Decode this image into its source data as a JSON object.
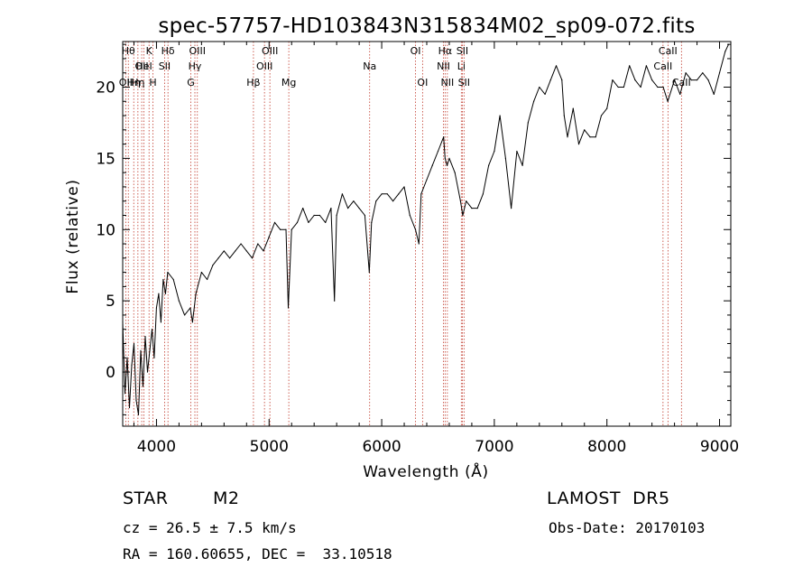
{
  "chart_data": {
    "type": "line",
    "title": "spec-57757-HD103843N315834M02_sp09-072.fits",
    "xlabel": "Wavelength (Å)",
    "ylabel": "Flux (relative)",
    "xlim": [
      3700,
      9100
    ],
    "ylim": [
      -3.8,
      23.2
    ],
    "x_ticks": [
      4000,
      5000,
      6000,
      7000,
      8000,
      9000
    ],
    "x_tick_labels": [
      "4000",
      "5000",
      "6000",
      "7000",
      "8000",
      "9000"
    ],
    "y_ticks": [
      0,
      5,
      10,
      15,
      20
    ],
    "y_tick_labels": [
      "0",
      "5",
      "10",
      "15",
      "20"
    ],
    "grid": false,
    "legend": "none",
    "line_color": "#000000",
    "marker_line_color": "#c0392b",
    "series": [
      {
        "x": [
          3700,
          3720,
          3740,
          3760,
          3780,
          3800,
          3820,
          3840,
          3860,
          3880,
          3900,
          3920,
          3940,
          3960,
          3980,
          4000,
          4020,
          4040,
          4060,
          4080,
          4100,
          4150,
          4200,
          4250,
          4300,
          4320,
          4350,
          4400,
          4450,
          4500,
          4550,
          4600,
          4650,
          4700,
          4750,
          4800,
          4850,
          4900,
          4950,
          5000,
          5050,
          5100,
          5150,
          5170,
          5200,
          5250,
          5300,
          5350,
          5400,
          5450,
          5500,
          5550,
          5580,
          5600,
          5650,
          5700,
          5750,
          5800,
          5850,
          5890,
          5910,
          5950,
          6000,
          6050,
          6100,
          6150,
          6200,
          6250,
          6300,
          6330,
          6350,
          6400,
          6450,
          6500,
          6550,
          6563,
          6580,
          6600,
          6650,
          6700,
          6720,
          6750,
          6800,
          6850,
          6900,
          6950,
          7000,
          7050,
          7100,
          7150,
          7200,
          7250,
          7300,
          7350,
          7400,
          7450,
          7500,
          7550,
          7600,
          7620,
          7650,
          7700,
          7750,
          7800,
          7850,
          7900,
          7950,
          8000,
          8050,
          8100,
          8150,
          8200,
          8250,
          8300,
          8350,
          8400,
          8450,
          8500,
          8540,
          8600,
          8650,
          8700,
          8750,
          8800,
          8850,
          8900,
          8950,
          9000,
          9050,
          9080
        ],
        "y": [
          3.5,
          -1.5,
          1.0,
          -2.5,
          0.5,
          2.0,
          -2.0,
          -3.0,
          1.5,
          -1.0,
          2.5,
          0.0,
          1.5,
          3.0,
          1.0,
          4.5,
          5.5,
          3.5,
          6.5,
          5.5,
          7.0,
          6.5,
          5.0,
          4.0,
          4.5,
          3.5,
          5.5,
          7.0,
          6.5,
          7.5,
          8.0,
          8.5,
          8.0,
          8.5,
          9.0,
          8.5,
          8.0,
          9.0,
          8.5,
          9.5,
          10.5,
          10.0,
          10.0,
          4.5,
          10.0,
          10.5,
          11.5,
          10.5,
          11.0,
          11.0,
          10.5,
          11.5,
          5.0,
          11.0,
          12.5,
          11.5,
          12.0,
          11.5,
          11.0,
          7.0,
          10.5,
          12.0,
          12.5,
          12.5,
          12.0,
          12.5,
          13.0,
          11.0,
          10.0,
          9.0,
          12.5,
          13.5,
          14.5,
          15.5,
          16.5,
          15.0,
          14.5,
          15.0,
          14.0,
          12.0,
          11.0,
          12.0,
          11.5,
          11.5,
          12.5,
          14.5,
          15.5,
          18.0,
          15.0,
          11.5,
          15.5,
          14.5,
          17.5,
          19.0,
          20.0,
          19.5,
          20.5,
          21.5,
          20.5,
          18.0,
          16.5,
          18.5,
          16.0,
          17.0,
          16.5,
          16.5,
          18.0,
          18.5,
          20.5,
          20.0,
          20.0,
          21.5,
          20.5,
          20.0,
          21.5,
          20.5,
          20.0,
          20.0,
          19.0,
          20.5,
          19.5,
          21.0,
          20.5,
          20.5,
          21.0,
          20.5,
          19.5,
          21.0,
          22.5,
          23.0
        ]
      }
    ],
    "spectral_lines": [
      {
        "wave": 3727,
        "label": "OII",
        "row": 2
      },
      {
        "wave": 3750,
        "label": "Hθ",
        "row": 0
      },
      {
        "wave": 3798,
        "label": "Hη",
        "row": 2
      },
      {
        "wave": 3835,
        "label": "Hη",
        "row": 2
      },
      {
        "wave": 3869,
        "label": "OII",
        "row": 1
      },
      {
        "wave": 3889,
        "label": "HeI",
        "row": 1
      },
      {
        "wave": 3934,
        "label": "K",
        "row": 0
      },
      {
        "wave": 3969,
        "label": "H",
        "row": 2
      },
      {
        "wave": 4072,
        "label": "SII",
        "row": 1
      },
      {
        "wave": 4102,
        "label": "Hδ",
        "row": 0
      },
      {
        "wave": 4305,
        "label": "G",
        "row": 2
      },
      {
        "wave": 4341,
        "label": "Hγ",
        "row": 1
      },
      {
        "wave": 4363,
        "label": "OIII",
        "row": 0
      },
      {
        "wave": 4861,
        "label": "Hβ",
        "row": 2
      },
      {
        "wave": 4959,
        "label": "OIII",
        "row": 1
      },
      {
        "wave": 5007,
        "label": "OIII",
        "row": 0
      },
      {
        "wave": 5175,
        "label": "Mg",
        "row": 2
      },
      {
        "wave": 5893,
        "label": "Na",
        "row": 1
      },
      {
        "wave": 6300,
        "label": "OI",
        "row": 0
      },
      {
        "wave": 6363,
        "label": "OI",
        "row": 2
      },
      {
        "wave": 6548,
        "label": "NII",
        "row": 1
      },
      {
        "wave": 6563,
        "label": "Hα",
        "row": 0
      },
      {
        "wave": 6583,
        "label": "NII",
        "row": 2
      },
      {
        "wave": 6707,
        "label": "Li",
        "row": 1
      },
      {
        "wave": 6716,
        "label": "SII",
        "row": 0
      },
      {
        "wave": 6731,
        "label": "SII",
        "row": 2
      },
      {
        "wave": 8498,
        "label": "CaII",
        "row": 1
      },
      {
        "wave": 8542,
        "label": "CaII",
        "row": 0
      },
      {
        "wave": 8662,
        "label": "CaII",
        "row": 2
      }
    ]
  },
  "info": {
    "object_class": "STAR",
    "subclass": "M2",
    "survey": "LAMOST  DR5",
    "velocity": "cz = 26.5 ± 7.5 km/s",
    "obs_date": "Obs-Date: 20170103",
    "coords": "RA = 160.60655, DEC =  33.10518"
  }
}
